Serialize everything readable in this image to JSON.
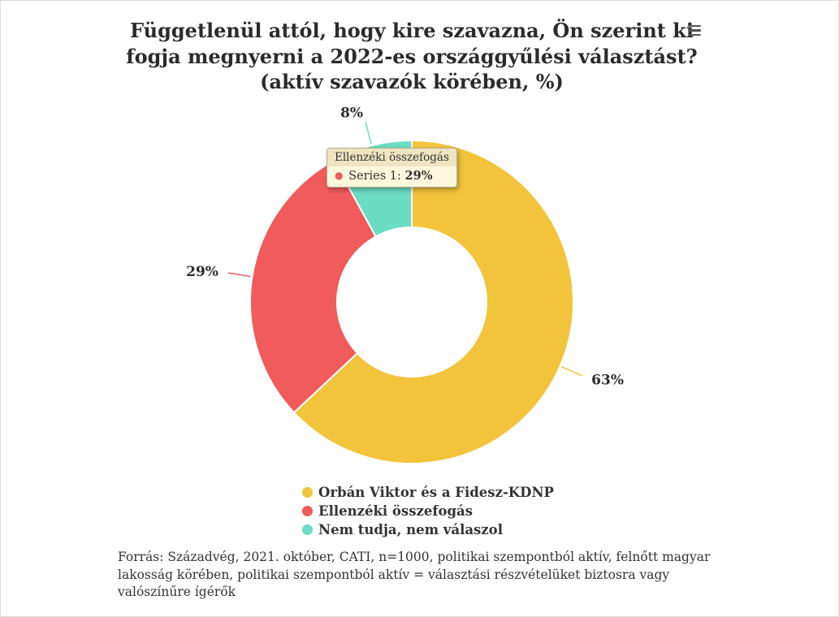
{
  "title": "Függetlenül attól, hogy kire szavazna, Ön szerint ki fogja megnyerni a 2022-es országgyűlési választást? (aktív szavazók körében, %)",
  "icons": {
    "context_menu": "hamburger-menu-icon"
  },
  "chart_data": {
    "type": "pie",
    "subtype": "donut",
    "series_name": "Series 1",
    "categories": [
      "Orbán Viktor és a Fidesz-KDNP",
      "Ellenzéki összefogás",
      "Nem tudja, nem válaszol"
    ],
    "values": [
      63,
      29,
      8
    ],
    "data_labels": [
      "63%",
      "29%",
      "8%"
    ],
    "colors": [
      "#F2C43C",
      "#F15B5B",
      "#6CDCC2"
    ],
    "start_angle_deg": 0,
    "inner_radius_pct": 46,
    "legend_position": "bottom-center",
    "label_color": "#2b2b2b"
  },
  "tooltip": {
    "header": "Ellenzéki összefogás",
    "series_label": "Series 1:",
    "value": "29%",
    "marker_color": "#F15B5B"
  },
  "footer": "Forrás: Századvég, 2021. október, CATI, n=1000, politikai szempontból aktív, felnőtt magyar lakosság körében, politikai szempontból aktív = választási részvételüket biztosra vagy valószínűre ígérők"
}
